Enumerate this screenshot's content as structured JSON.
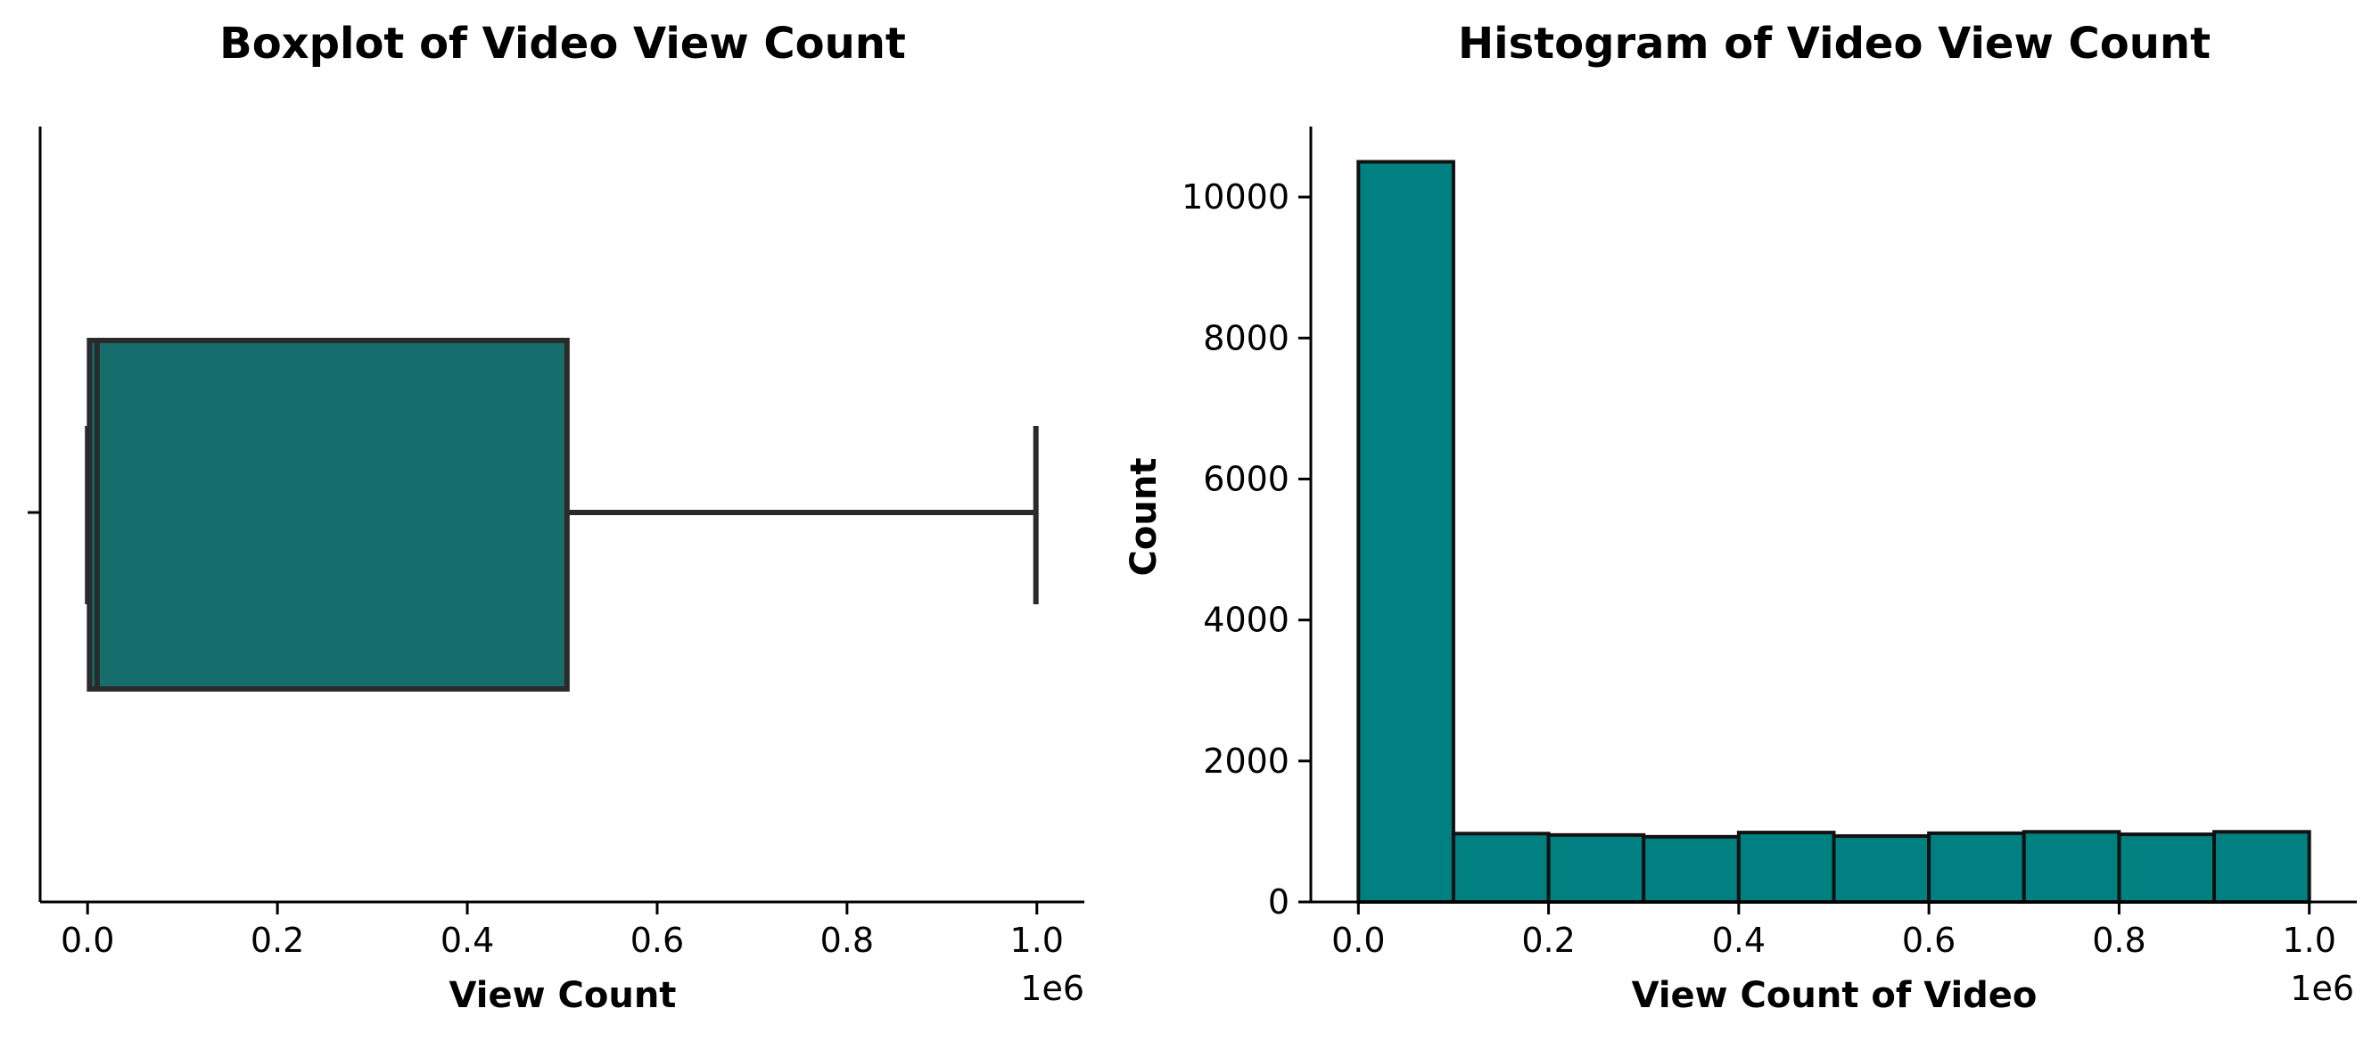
{
  "chart_data": [
    {
      "type": "box",
      "title": "Boxplot of Video View Count",
      "xlabel": "View Count",
      "ylabel": "",
      "x_offset_label": "1e6",
      "xlim": [
        -50000,
        1050000
      ],
      "x_ticks": [
        0.0,
        0.2,
        0.4,
        0.6,
        0.8,
        1.0
      ],
      "x_tick_labels": [
        "0.0",
        "0.2",
        "0.4",
        "0.6",
        "0.8",
        "1.0"
      ],
      "grid": false,
      "box": {
        "min": 0,
        "q1": 2000,
        "median": 10000,
        "q3": 505000,
        "max": 999000
      },
      "colors": {
        "box": "#156e6b",
        "edge": "#2a2a2a"
      }
    },
    {
      "type": "bar",
      "title": "Histogram of Video View Count",
      "xlabel": "View Count of Video",
      "ylabel": "Count",
      "x_offset_label": "1e6",
      "xlim": [
        -50000,
        1050000
      ],
      "ylim": [
        0,
        11000
      ],
      "x_ticks": [
        0.0,
        0.2,
        0.4,
        0.6,
        0.8,
        1.0
      ],
      "x_tick_labels": [
        "0.0",
        "0.2",
        "0.4",
        "0.6",
        "0.8",
        "1.0"
      ],
      "y_ticks": [
        0,
        2000,
        4000,
        6000,
        8000,
        10000
      ],
      "y_tick_labels": [
        "0",
        "2000",
        "4000",
        "6000",
        "8000",
        "10000"
      ],
      "grid": false,
      "bin_edges": [
        0,
        100000,
        200000,
        300000,
        400000,
        500000,
        600000,
        700000,
        800000,
        900000,
        1000000
      ],
      "values": [
        10500,
        970,
        950,
        925,
        985,
        935,
        975,
        995,
        960,
        995
      ],
      "colors": {
        "bar": "#008080",
        "edge": "#111111"
      }
    }
  ]
}
